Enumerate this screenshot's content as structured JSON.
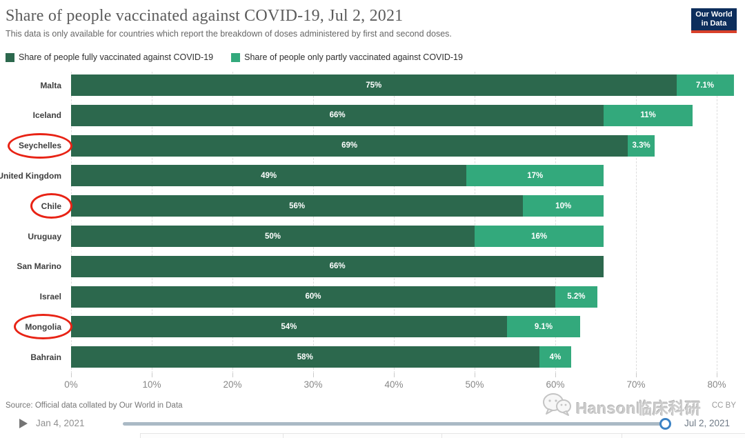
{
  "header": {
    "title": "Share of people vaccinated against COVID-19, Jul 2, 2021",
    "subtitle": "This data is only available for countries which report the breakdown of doses administered by first and second doses.",
    "logo": {
      "line1": "Our World",
      "line2": "in Data",
      "bg_color": "#0d2e5c",
      "stripe_color": "#d8402a"
    }
  },
  "legend": {
    "items": [
      {
        "label": "Share of people fully vaccinated against COVID-19",
        "color": "#2c684d"
      },
      {
        "label": "Share of people only partly vaccinated against COVID-19",
        "color": "#33a97c"
      }
    ]
  },
  "chart_data": {
    "type": "bar",
    "orientation": "horizontal",
    "stacked": true,
    "title": "Share of people vaccinated against COVID-19, Jul 2, 2021",
    "categories": [
      "Malta",
      "Iceland",
      "Seychelles",
      "United Kingdom",
      "Chile",
      "Uruguay",
      "San Marino",
      "Israel",
      "Mongolia",
      "Bahrain"
    ],
    "series": [
      {
        "name": "Share of people fully vaccinated against COVID-19",
        "color": "#2c684d",
        "values": [
          75,
          66,
          69,
          49,
          56,
          50,
          66,
          60,
          54,
          58
        ],
        "labels": [
          "75%",
          "66%",
          "69%",
          "49%",
          "56%",
          "50%",
          "66%",
          "60%",
          "54%",
          "58%"
        ]
      },
      {
        "name": "Share of people only partly vaccinated against COVID-19",
        "color": "#33a97c",
        "values": [
          7.1,
          11,
          3.3,
          17,
          10,
          16,
          null,
          5.2,
          9.1,
          4
        ],
        "labels": [
          "7.1%",
          "11%",
          "3.3%",
          "17%",
          "10%",
          "16%",
          "",
          "5.2%",
          "9.1%",
          "4%"
        ]
      }
    ],
    "x_ticks": [
      "0%",
      "10%",
      "20%",
      "30%",
      "40%",
      "50%",
      "60%",
      "70%",
      "80%"
    ],
    "xlim": [
      0,
      80
    ],
    "grid": true,
    "legend_position": "top",
    "annotated_countries": [
      "Seychelles",
      "Chile",
      "Mongolia"
    ],
    "annotation_color": "#e82315"
  },
  "footer": {
    "source": "Source: Official data collated by Our World in Data",
    "license": "CC BY"
  },
  "watermark": {
    "icon": "wechat-icon",
    "text": "Hanson临床科研"
  },
  "timeline": {
    "start_date": "Jan 4, 2021",
    "end_date": "Jul 2, 2021",
    "handle_color": "#3b82c4",
    "track_color": "#aab9c5"
  }
}
